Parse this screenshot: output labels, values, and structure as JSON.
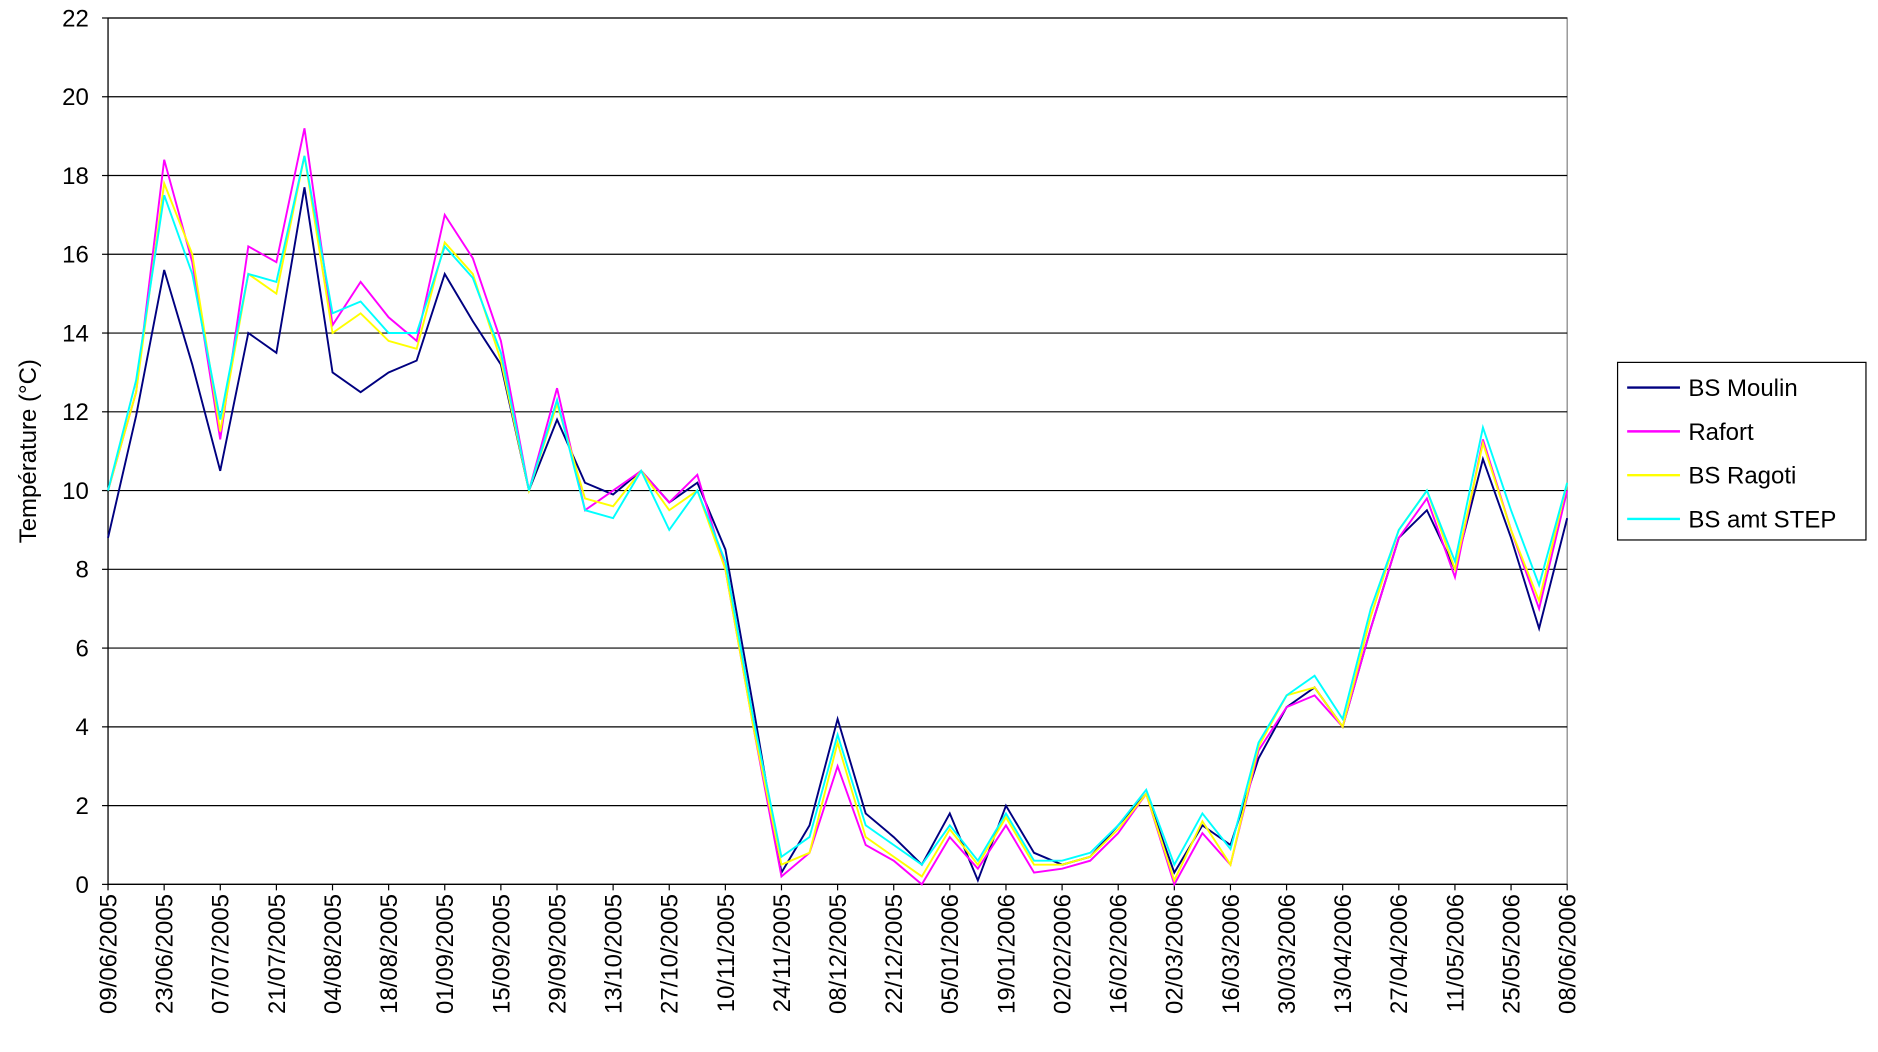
{
  "chart_data": {
    "type": "line",
    "y_label": "Température (°C)",
    "categories": [
      "09/06/2005",
      null,
      "23/06/2005",
      null,
      "07/07/2005",
      null,
      "21/07/2005",
      null,
      "04/08/2005",
      null,
      "18/08/2005",
      null,
      "01/09/2005",
      null,
      "15/09/2005",
      null,
      "29/09/2005",
      null,
      "13/10/2005",
      null,
      "27/10/2005",
      null,
      "10/11/2005",
      null,
      "24/11/2005",
      null,
      "08/12/2005",
      null,
      "22/12/2005",
      null,
      "05/01/2006",
      null,
      "19/01/2006",
      null,
      "02/02/2006",
      null,
      "16/02/2006",
      null,
      "02/03/2006",
      null,
      "16/03/2006",
      null,
      "30/03/2006",
      null,
      "13/04/2006",
      null,
      "27/04/2006",
      null,
      "11/05/2006",
      null,
      "25/05/2006",
      null,
      "08/06/2006"
    ],
    "series": [
      {
        "name": "BS Moulin",
        "color": "#000080",
        "values": [
          8.8,
          11.9,
          15.6,
          13.2,
          10.5,
          14,
          13.5,
          17.7,
          13,
          12.5,
          13,
          13.3,
          15.5,
          14.3,
          13.2,
          10,
          11.8,
          10.2,
          9.9,
          10.5,
          9.7,
          10.2,
          8.5,
          4.5,
          0.3,
          1.5,
          4.2,
          1.8,
          1.2,
          0.5,
          1.8,
          0.1,
          2,
          0.8,
          0.5,
          0.7,
          1.5,
          2.3,
          0.3,
          1.5,
          1,
          3.2,
          4.5,
          5,
          4,
          6.5,
          8.8,
          9.5,
          8,
          10.8,
          8.8,
          6.5,
          9.3
        ]
      },
      {
        "name": "Rafort",
        "color": "#ff00ff",
        "values": [
          10,
          12.5,
          18.4,
          15.8,
          11.3,
          16.2,
          15.8,
          19.2,
          14.2,
          15.3,
          14.4,
          13.8,
          17,
          15.9,
          13.8,
          10,
          12.6,
          9.5,
          10,
          10.5,
          9.7,
          10.4,
          8,
          4,
          0.2,
          0.8,
          3,
          1,
          0.6,
          0,
          1.2,
          0.4,
          1.5,
          0.3,
          0.4,
          0.6,
          1.3,
          2.3,
          0,
          1.3,
          0.5,
          3.4,
          4.5,
          4.8,
          4,
          6.5,
          8.8,
          9.8,
          7.8,
          11.3,
          9,
          7,
          10
        ]
      },
      {
        "name": "BS Ragoti",
        "color": "#ffff00",
        "values": [
          10,
          12.5,
          17.8,
          16,
          11.5,
          15.5,
          15,
          18.5,
          14,
          14.5,
          13.8,
          13.6,
          16.3,
          15.5,
          13.3,
          10,
          12.2,
          9.8,
          9.6,
          10.5,
          9.5,
          10,
          8,
          4,
          0.5,
          0.8,
          3.6,
          1.2,
          0.7,
          0.2,
          1.4,
          0.5,
          1.7,
          0.5,
          0.5,
          0.7,
          1.4,
          2.3,
          0.1,
          1.6,
          0.5,
          3.5,
          4.8,
          5,
          4,
          6.8,
          9,
          10,
          8,
          11.2,
          9,
          7.2,
          10.2
        ]
      },
      {
        "name": "BS amt STEP",
        "color": "#00ffff",
        "values": [
          10,
          12.8,
          17.5,
          15.5,
          11.8,
          15.5,
          15.3,
          18.5,
          14.5,
          14.8,
          14,
          14,
          16.2,
          15.4,
          13.5,
          10,
          12.3,
          9.5,
          9.3,
          10.5,
          9,
          10,
          8.2,
          4.2,
          0.7,
          1.2,
          3.8,
          1.5,
          1,
          0.5,
          1.5,
          0.6,
          1.8,
          0.6,
          0.6,
          0.8,
          1.5,
          2.4,
          0.5,
          1.8,
          0.9,
          3.6,
          4.8,
          5.3,
          4.2,
          7,
          9,
          10,
          8.2,
          11.6,
          9.5,
          7.6,
          10.2
        ]
      }
    ],
    "ylim": [
      0,
      22
    ],
    "yticks": [
      0,
      2,
      4,
      6,
      8,
      10,
      12,
      14,
      16,
      18,
      20,
      22
    ],
    "grid": true,
    "legend": "right"
  }
}
